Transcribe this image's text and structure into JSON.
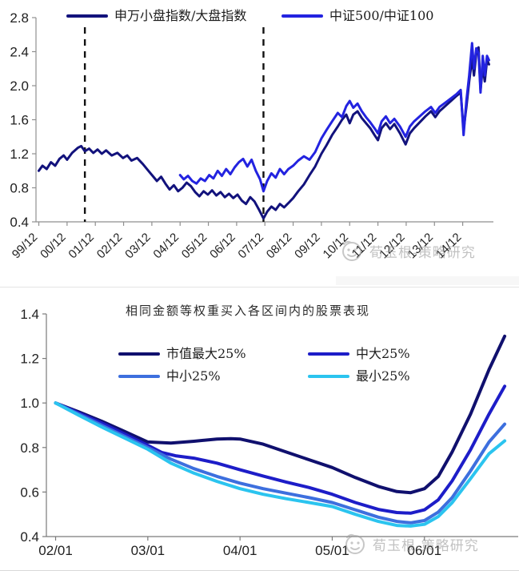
{
  "watermark": {
    "text": "荀玉根-策略研究",
    "logo": "wechat-account-face-logo"
  },
  "chart_data": [
    {
      "type": "line",
      "title": "",
      "xlabel": "",
      "ylabel": "",
      "legend_position": "top",
      "grid": false,
      "ylim": [
        0.4,
        2.8
      ],
      "yticks": [
        "0.4",
        "0.8",
        "1.2",
        "1.6",
        "2.0",
        "2.4",
        "2.8"
      ],
      "xticks": {
        "start": 1999.92,
        "step": 1,
        "labels": [
          "99/12",
          "00/12",
          "01/12",
          "02/12",
          "03/12",
          "04/12",
          "05/12",
          "06/12",
          "07/12",
          "08/12",
          "09/12",
          "10/12",
          "11/12",
          "12/12",
          "13/12",
          "14/12"
        ]
      },
      "xlim": [
        1999.82,
        2015.95
      ],
      "vlines_x": [
        2001.55,
        2007.87
      ],
      "series": [
        {
          "name": "申万小盘指数/大盘指数",
          "color": "#12127c",
          "x": [
            1999.92,
            2000.05,
            2000.2,
            2000.35,
            2000.5,
            2000.65,
            2000.8,
            2000.92,
            2001.1,
            2001.3,
            2001.42,
            2001.55,
            2001.7,
            2001.85,
            2002.0,
            2002.15,
            2002.3,
            2002.5,
            2002.7,
            2002.9,
            2003.05,
            2003.2,
            2003.4,
            2003.6,
            2003.8,
            2003.95,
            2004.1,
            2004.25,
            2004.4,
            2004.55,
            2004.7,
            2004.85,
            2005.0,
            2005.15,
            2005.3,
            2005.45,
            2005.6,
            2005.75,
            2005.9,
            2006.05,
            2006.2,
            2006.35,
            2006.5,
            2006.65,
            2006.8,
            2006.95,
            2007.1,
            2007.25,
            2007.4,
            2007.55,
            2007.7,
            2007.87,
            2008.0,
            2008.15,
            2008.3,
            2008.45,
            2008.6,
            2008.75,
            2008.92,
            2009.1,
            2009.3,
            2009.5,
            2009.7,
            2009.92,
            2010.1,
            2010.3,
            2010.5,
            2010.65,
            2010.8,
            2010.92,
            2011.05,
            2011.2,
            2011.35,
            2011.5,
            2011.65,
            2011.8,
            2011.92,
            2012.05,
            2012.2,
            2012.35,
            2012.5,
            2012.7,
            2012.9,
            2013.05,
            2013.2,
            2013.4,
            2013.6,
            2013.8,
            2013.95,
            2014.1,
            2014.3,
            2014.5,
            2014.7,
            2014.85,
            2014.95,
            2015.05,
            2015.15,
            2015.25,
            2015.32,
            2015.4,
            2015.48,
            2015.55,
            2015.63,
            2015.7,
            2015.78,
            2015.85
          ],
          "y": [
            1.0,
            1.06,
            1.02,
            1.1,
            1.06,
            1.14,
            1.18,
            1.13,
            1.21,
            1.27,
            1.29,
            1.23,
            1.26,
            1.21,
            1.25,
            1.2,
            1.24,
            1.18,
            1.21,
            1.15,
            1.18,
            1.12,
            1.15,
            1.08,
            1.0,
            0.94,
            0.88,
            0.93,
            0.85,
            0.78,
            0.83,
            0.76,
            0.8,
            0.86,
            0.82,
            0.75,
            0.7,
            0.76,
            0.72,
            0.77,
            0.71,
            0.75,
            0.69,
            0.73,
            0.68,
            0.72,
            0.65,
            0.61,
            0.69,
            0.64,
            0.55,
            0.44,
            0.52,
            0.58,
            0.54,
            0.61,
            0.57,
            0.62,
            0.68,
            0.76,
            0.84,
            0.95,
            1.05,
            1.2,
            1.3,
            1.42,
            1.52,
            1.6,
            1.66,
            1.56,
            1.66,
            1.7,
            1.62,
            1.56,
            1.5,
            1.42,
            1.36,
            1.5,
            1.56,
            1.49,
            1.55,
            1.44,
            1.31,
            1.44,
            1.5,
            1.57,
            1.64,
            1.7,
            1.63,
            1.7,
            1.76,
            1.82,
            1.88,
            1.92,
            1.48,
            1.75,
            2.05,
            2.32,
            2.12,
            2.38,
            2.45,
            1.95,
            2.22,
            2.05,
            2.3,
            2.25
          ]
        },
        {
          "name": "中证500/中证100",
          "color": "#2323e0",
          "x": [
            2004.92,
            2005.05,
            2005.2,
            2005.35,
            2005.5,
            2005.65,
            2005.8,
            2005.95,
            2006.1,
            2006.25,
            2006.4,
            2006.55,
            2006.7,
            2006.85,
            2007.0,
            2007.15,
            2007.3,
            2007.45,
            2007.6,
            2007.75,
            2007.87,
            2008.0,
            2008.15,
            2008.3,
            2008.45,
            2008.6,
            2008.75,
            2008.92,
            2009.1,
            2009.3,
            2009.5,
            2009.7,
            2009.92,
            2010.1,
            2010.3,
            2010.5,
            2010.65,
            2010.8,
            2010.92,
            2011.05,
            2011.2,
            2011.35,
            2011.5,
            2011.65,
            2011.8,
            2011.92,
            2012.05,
            2012.2,
            2012.35,
            2012.5,
            2012.7,
            2012.9,
            2013.05,
            2013.2,
            2013.4,
            2013.6,
            2013.8,
            2013.95,
            2014.1,
            2014.3,
            2014.5,
            2014.7,
            2014.85,
            2014.95,
            2015.05,
            2015.15,
            2015.25,
            2015.32,
            2015.4,
            2015.48,
            2015.55,
            2015.63,
            2015.7,
            2015.78,
            2015.85
          ],
          "y": [
            0.95,
            0.9,
            0.94,
            0.88,
            0.85,
            0.91,
            0.88,
            0.95,
            0.91,
            1.0,
            0.94,
            1.02,
            0.96,
            1.04,
            1.1,
            1.14,
            1.05,
            1.13,
            1.0,
            0.9,
            0.76,
            0.88,
            0.97,
            0.92,
            1.02,
            0.96,
            1.02,
            1.06,
            1.12,
            1.17,
            1.13,
            1.22,
            1.38,
            1.48,
            1.58,
            1.68,
            1.63,
            1.76,
            1.82,
            1.74,
            1.79,
            1.7,
            1.63,
            1.57,
            1.5,
            1.44,
            1.58,
            1.64,
            1.56,
            1.61,
            1.52,
            1.4,
            1.52,
            1.58,
            1.64,
            1.7,
            1.75,
            1.68,
            1.75,
            1.8,
            1.85,
            1.9,
            1.95,
            1.42,
            1.82,
            2.12,
            2.5,
            2.2,
            2.44,
            2.38,
            1.92,
            2.35,
            2.12,
            2.35,
            2.3
          ]
        }
      ]
    },
    {
      "type": "line",
      "title": "相同金额等权重买入各区间内的股票表现",
      "xlabel": "",
      "ylabel": "",
      "legend_position": "top",
      "grid": false,
      "ylim": [
        0.4,
        1.4
      ],
      "yticks": [
        "0.4",
        "0.6",
        "0.8",
        "1.0",
        "1.2",
        "1.4"
      ],
      "xticks": {
        "start": 0,
        "step": 1,
        "labels": [
          "02/01",
          "03/01",
          "04/01",
          "05/01",
          "06/01"
        ]
      },
      "xlim": [
        -0.1,
        4.93
      ],
      "vlines_x": [],
      "series": [
        {
          "name": "市值最大25%",
          "color": "#10106e",
          "x": [
            0,
            0.25,
            0.5,
            0.75,
            1.0,
            1.25,
            1.5,
            1.75,
            1.9,
            2.0,
            2.25,
            2.5,
            2.75,
            3.0,
            3.25,
            3.5,
            3.7,
            3.85,
            4.0,
            4.15,
            4.3,
            4.5,
            4.7,
            4.87
          ],
          "y": [
            1.0,
            0.96,
            0.918,
            0.872,
            0.825,
            0.82,
            0.828,
            0.838,
            0.84,
            0.838,
            0.815,
            0.78,
            0.745,
            0.71,
            0.665,
            0.625,
            0.602,
            0.597,
            0.615,
            0.67,
            0.78,
            0.95,
            1.15,
            1.3
          ]
        },
        {
          "name": "中大25%",
          "color": "#1d1dc8",
          "x": [
            0,
            0.25,
            0.5,
            0.75,
            1.0,
            1.15,
            1.3,
            1.5,
            1.75,
            2.0,
            2.25,
            2.5,
            2.75,
            3.0,
            3.25,
            3.5,
            3.7,
            3.85,
            4.0,
            4.15,
            4.3,
            4.5,
            4.7,
            4.87
          ],
          "y": [
            1.0,
            0.955,
            0.91,
            0.86,
            0.81,
            0.778,
            0.763,
            0.752,
            0.73,
            0.7,
            0.672,
            0.645,
            0.62,
            0.59,
            0.553,
            0.522,
            0.508,
            0.505,
            0.52,
            0.565,
            0.65,
            0.79,
            0.95,
            1.075
          ]
        },
        {
          "name": "中小25%",
          "color": "#3d6fde",
          "x": [
            0,
            0.25,
            0.5,
            0.75,
            1.0,
            1.25,
            1.5,
            1.75,
            2.0,
            2.25,
            2.5,
            2.75,
            3.0,
            3.25,
            3.5,
            3.7,
            3.85,
            4.0,
            4.15,
            4.3,
            4.5,
            4.7,
            4.87
          ],
          "y": [
            1.0,
            0.95,
            0.9,
            0.85,
            0.8,
            0.748,
            0.705,
            0.67,
            0.64,
            0.615,
            0.595,
            0.575,
            0.553,
            0.52,
            0.487,
            0.468,
            0.462,
            0.472,
            0.51,
            0.575,
            0.695,
            0.825,
            0.905
          ]
        },
        {
          "name": "最小25%",
          "color": "#2bc4ef",
          "x": [
            0,
            0.25,
            0.5,
            0.75,
            1.0,
            1.25,
            1.5,
            1.75,
            2.0,
            2.25,
            2.5,
            2.75,
            3.0,
            3.25,
            3.5,
            3.7,
            3.85,
            4.0,
            4.15,
            4.3,
            4.5,
            4.7,
            4.87
          ],
          "y": [
            1.0,
            0.945,
            0.892,
            0.842,
            0.792,
            0.73,
            0.685,
            0.648,
            0.615,
            0.59,
            0.57,
            0.553,
            0.535,
            0.5,
            0.468,
            0.45,
            0.447,
            0.455,
            0.49,
            0.552,
            0.66,
            0.772,
            0.83
          ]
        }
      ]
    }
  ]
}
